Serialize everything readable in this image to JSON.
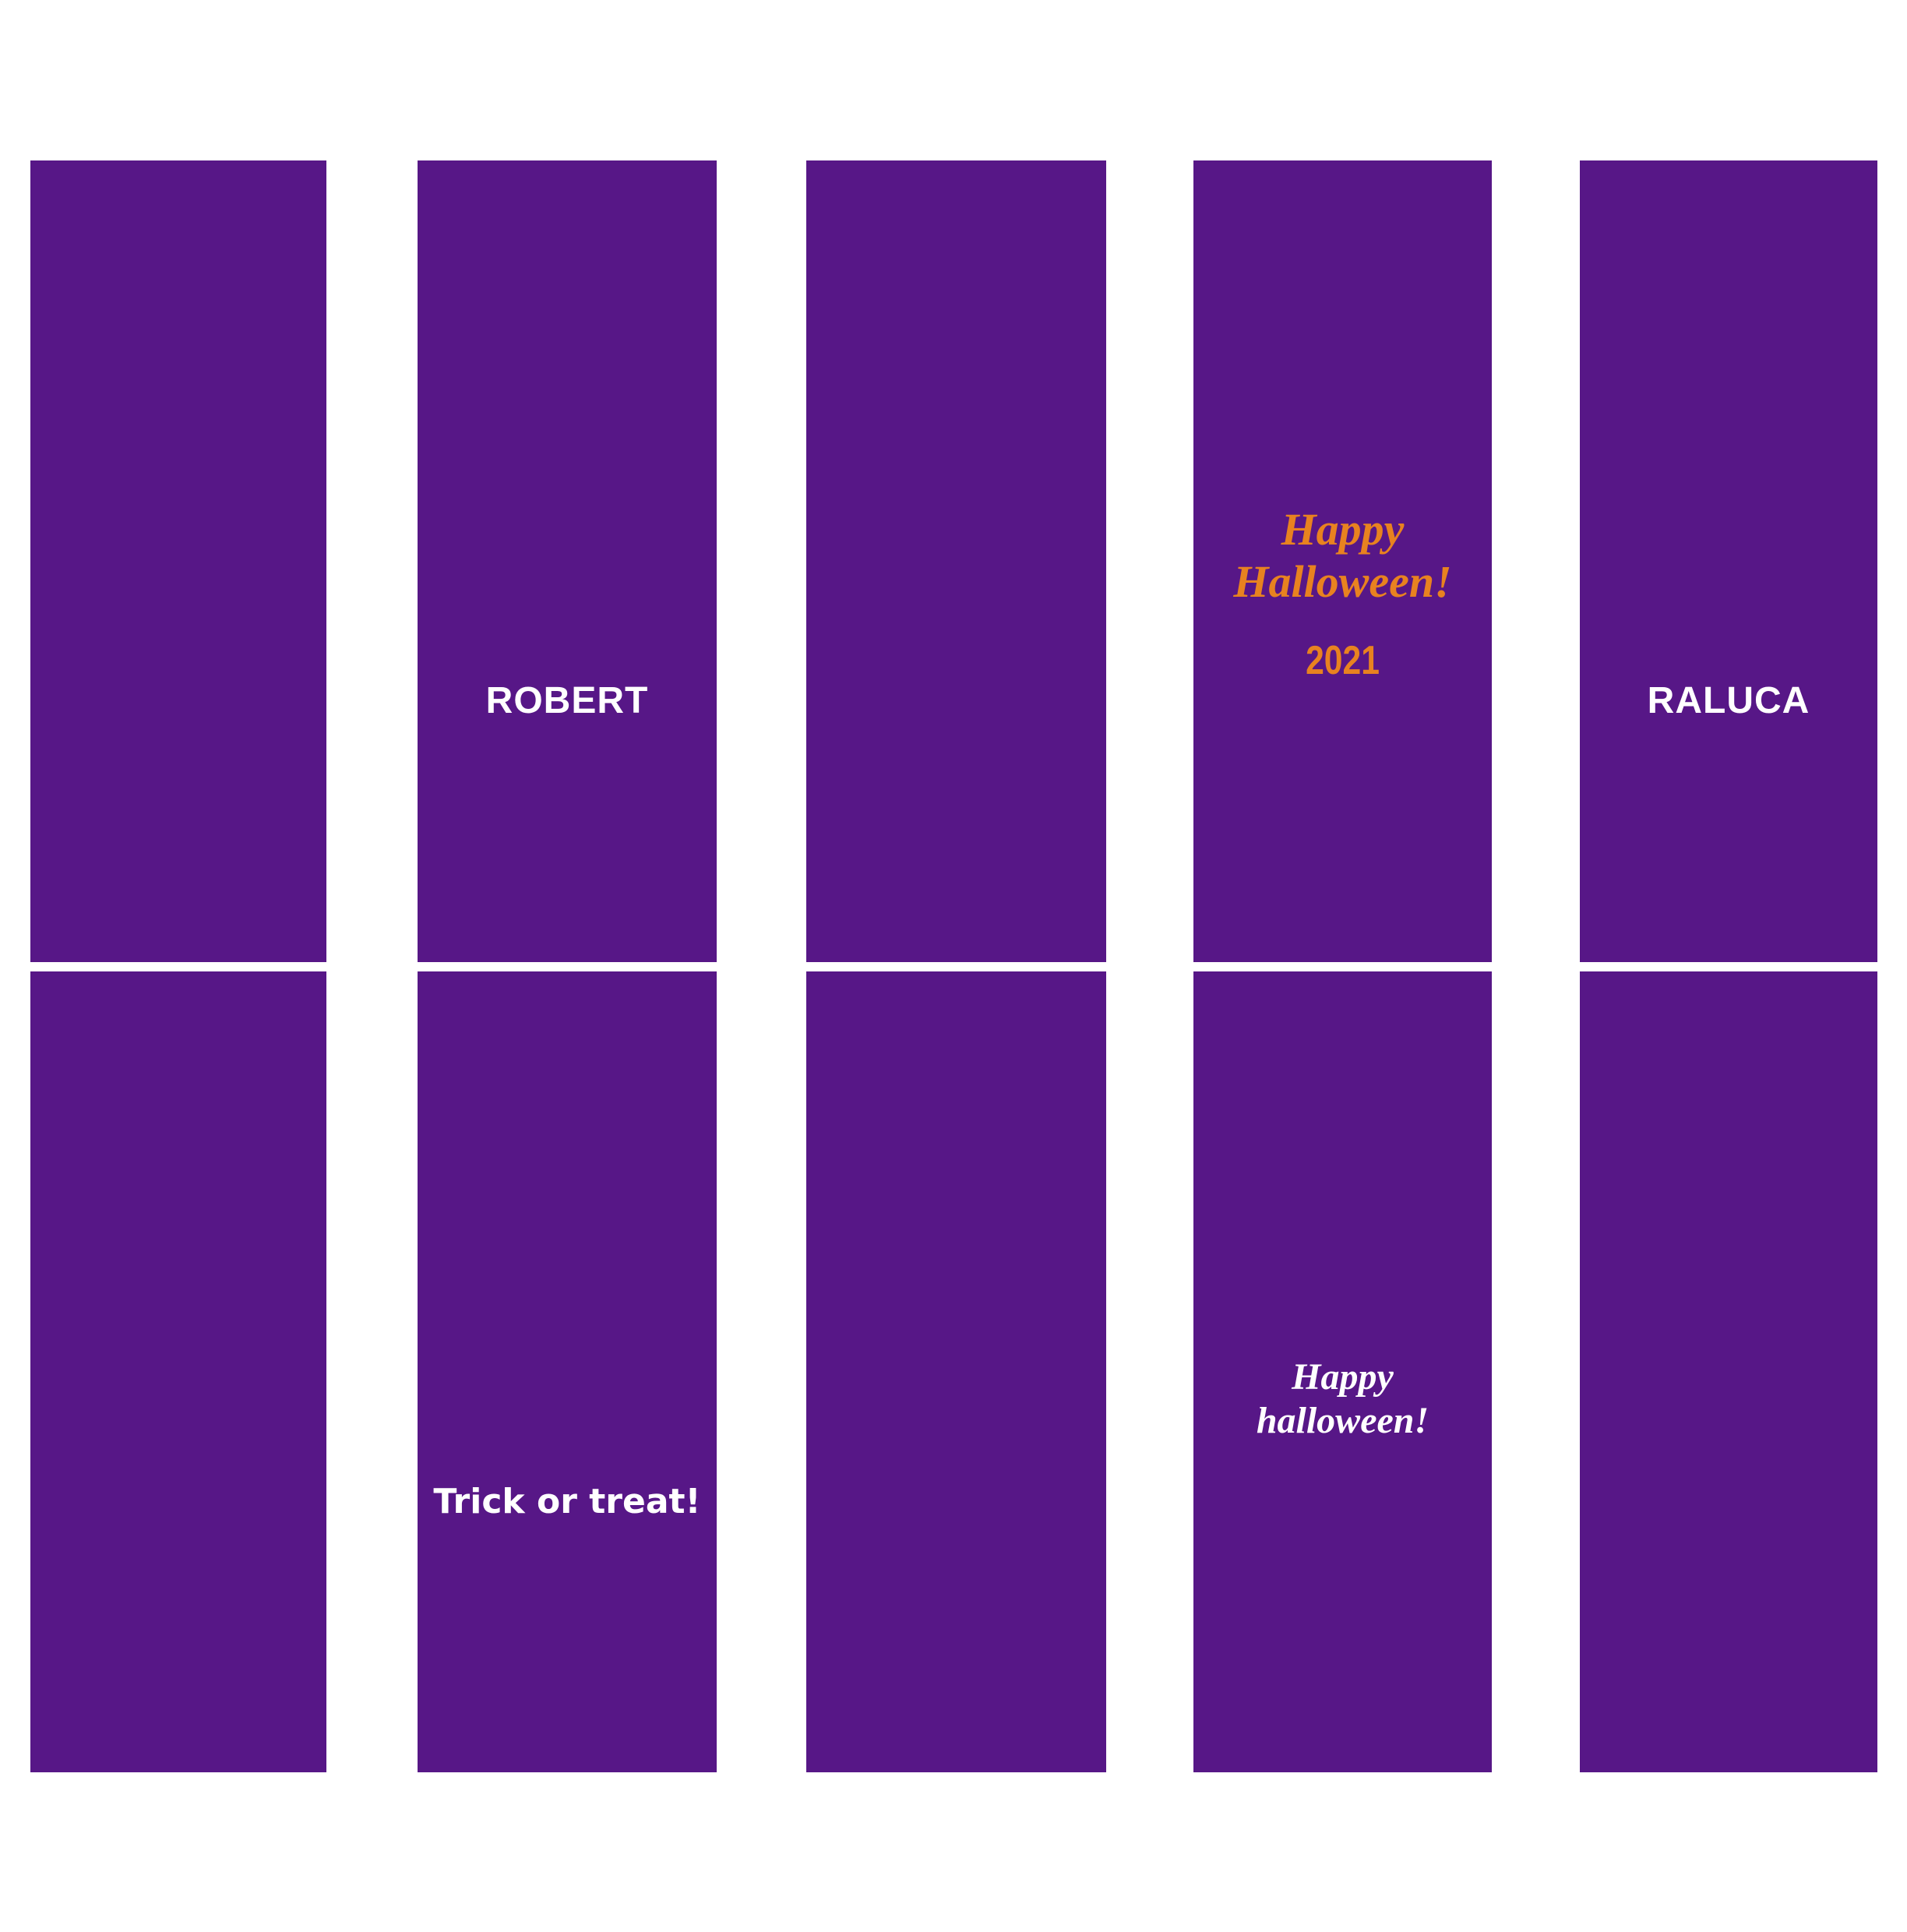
{
  "colors": {
    "background": "#FFFFFF",
    "card_purple": "#571787",
    "accent_orange": "#E88220",
    "text_white": "#FFFFFF"
  },
  "sheet": {
    "rows": 2,
    "columns": 5,
    "panel_count": 10
  },
  "cards": {
    "r1c2": {
      "name_label": "ROBERT"
    },
    "r1c4": {
      "greeting_lines": [
        "Happy",
        "Halloween!"
      ],
      "year": "2021"
    },
    "r1c5": {
      "name_label": "RALUCA"
    },
    "r2c2": {
      "message": "Trick or treat!"
    },
    "r2c4": {
      "greeting_lines": [
        "Happy",
        "halloween!"
      ]
    }
  }
}
